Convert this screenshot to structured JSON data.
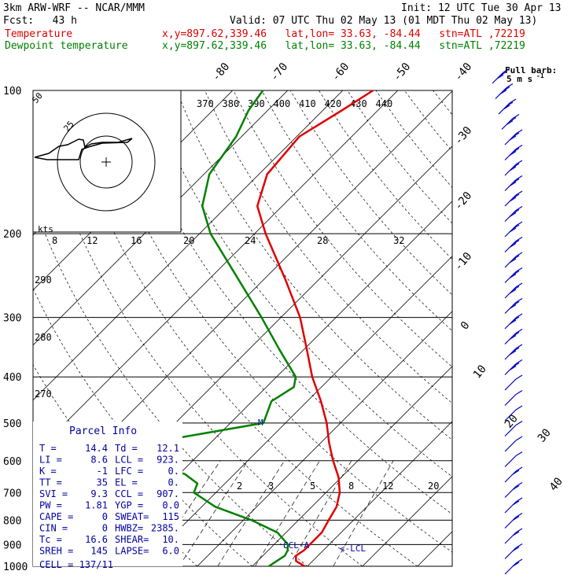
{
  "header": {
    "model": "3km ARW-WRF -- NCAR/MMM",
    "init": "Init: 12 UTC Tue 30 Apr 13",
    "fcst": "Fcst:   43 h",
    "valid": "Valid: 07 UTC Thu 02 May 13 (01 MDT Thu 02 May 13)",
    "temp_label": "Temperature",
    "dew_label": "Dewpoint temperature",
    "temp_loc": "x,y=897.62,339.46   lat,lon= 33.63, -84.44   stn=ATL ,72219",
    "dew_loc": "x,y=897.62,339.46   lat,lon= 33.63, -84.44   stn=ATL ,72219"
  },
  "colors": {
    "temperature": "#e00000",
    "dewpoint": "#008000",
    "barbs": "#0000c0",
    "grid": "#000000"
  },
  "barb_legend": {
    "line1": "Full barb:",
    "line2": "5 m s",
    "sup": "-1"
  },
  "chart_data": {
    "type": "line",
    "title": "",
    "yaxis": "pressure (hPa)",
    "pressure_ticks": [
      "100",
      "200",
      "300",
      "400",
      "500",
      "600",
      "700",
      "800",
      "900",
      "1000"
    ],
    "temp_ticks_top": [
      "-80",
      "-70",
      "-60",
      "-50",
      "-40"
    ],
    "temp_ticks_right": [
      "-30",
      "-20",
      "-10",
      "0",
      "10",
      "20",
      "30",
      "40"
    ],
    "theta_labels": [
      "370",
      "380",
      "390",
      "400",
      "410",
      "420",
      "430",
      "440"
    ],
    "theta_left_labels": [
      "290",
      "280",
      "270"
    ],
    "mixing_ratio_labels": [
      "2",
      "3",
      "5",
      "8",
      "12",
      "20"
    ],
    "hodograph": {
      "units": "kts",
      "speed_ring_labels": [
        "25",
        "50"
      ],
      "speed_axis_labels": [
        "8",
        "12",
        "16",
        "20",
        "24",
        "28",
        "32"
      ]
    },
    "series": [
      {
        "name": "Temperature",
        "points": [
          {
            "p": 1000,
            "t": 19.5
          },
          {
            "p": 975,
            "t": 17.0
          },
          {
            "p": 950,
            "t": 16.0
          },
          {
            "p": 925,
            "t": 16.5
          },
          {
            "p": 900,
            "t": 16.5
          },
          {
            "p": 850,
            "t": 16.5
          },
          {
            "p": 800,
            "t": 15.5
          },
          {
            "p": 750,
            "t": 14.5
          },
          {
            "p": 700,
            "t": 12.5
          },
          {
            "p": 650,
            "t": 9.5
          },
          {
            "p": 600,
            "t": 5.5
          },
          {
            "p": 550,
            "t": 1.5
          },
          {
            "p": 500,
            "t": -2.5
          },
          {
            "p": 450,
            "t": -7.5
          },
          {
            "p": 400,
            "t": -13.5
          },
          {
            "p": 350,
            "t": -19.5
          },
          {
            "p": 300,
            "t": -26.5
          },
          {
            "p": 250,
            "t": -36.0
          },
          {
            "p": 200,
            "t": -48.0
          },
          {
            "p": 175,
            "t": -54.5
          },
          {
            "p": 150,
            "t": -58.5
          },
          {
            "p": 125,
            "t": -59.5
          },
          {
            "p": 110,
            "t": -56.5
          },
          {
            "p": 100,
            "t": -54.5
          }
        ]
      },
      {
        "name": "Dewpoint temperature",
        "points": [
          {
            "p": 1000,
            "t": 13.0
          },
          {
            "p": 975,
            "t": 13.5
          },
          {
            "p": 950,
            "t": 14.0
          },
          {
            "p": 925,
            "t": 13.5
          },
          {
            "p": 900,
            "t": 12.5
          },
          {
            "p": 850,
            "t": 8.5
          },
          {
            "p": 800,
            "t": 1.5
          },
          {
            "p": 750,
            "t": -7.5
          },
          {
            "p": 700,
            "t": -14.0
          },
          {
            "p": 670,
            "t": -15.0
          },
          {
            "p": 640,
            "t": -19.0
          },
          {
            "p": 600,
            "t": -30.0
          },
          {
            "p": 585,
            "t": -42.0
          },
          {
            "p": 575,
            "t": -50.0
          },
          {
            "p": 550,
            "t": -31.0
          },
          {
            "p": 500,
            "t": -14.0
          },
          {
            "p": 450,
            "t": -16.5
          },
          {
            "p": 420,
            "t": -15.0
          },
          {
            "p": 400,
            "t": -16.5
          },
          {
            "p": 350,
            "t": -24.5
          },
          {
            "p": 300,
            "t": -33.5
          },
          {
            "p": 250,
            "t": -44.5
          },
          {
            "p": 200,
            "t": -58.0
          },
          {
            "p": 175,
            "t": -64.5
          },
          {
            "p": 150,
            "t": -69.0
          },
          {
            "p": 125,
            "t": -71.0
          },
          {
            "p": 110,
            "t": -73.5
          },
          {
            "p": 100,
            "t": -74.5
          }
        ]
      }
    ],
    "markers": {
      "ccl": "CCL-A",
      "lcl": "<-LCL",
      "level_m": "M"
    }
  },
  "parcel_info": {
    "title": "Parcel Info",
    "rows": [
      {
        "l1": "T    =",
        "v1": "14.4",
        "l2": "Td  =",
        "v2": "12.1"
      },
      {
        "l1": "LI   =",
        "v1": "8.6",
        "l2": "LCL =",
        "v2": "923."
      },
      {
        "l1": "K    =",
        "v1": "-1",
        "l2": "LFC =",
        "v2": "0."
      },
      {
        "l1": "TT   =",
        "v1": "35",
        "l2": "EL  =",
        "v2": "0."
      },
      {
        "l1": "SVI  =",
        "v1": "9.3",
        "l2": "CCL =",
        "v2": "907."
      },
      {
        "l1": "PW   =",
        "v1": "1.81",
        "l2": "YGP =",
        "v2": "0.0"
      },
      {
        "l1": "CAPE =",
        "v1": "0",
        "l2": "SWEAT=",
        "v2": "115"
      },
      {
        "l1": "CIN  =",
        "v1": "0",
        "l2": "HWBZ=",
        "v2": "2385."
      },
      {
        "l1": "Tc   =",
        "v1": "16.6",
        "l2": "SHEAR=",
        "v2": "10."
      },
      {
        "l1": "SREH =",
        "v1": "145",
        "l2": "LAPSE=",
        "v2": "6.0"
      }
    ],
    "cell": "CELL = 137/11"
  }
}
